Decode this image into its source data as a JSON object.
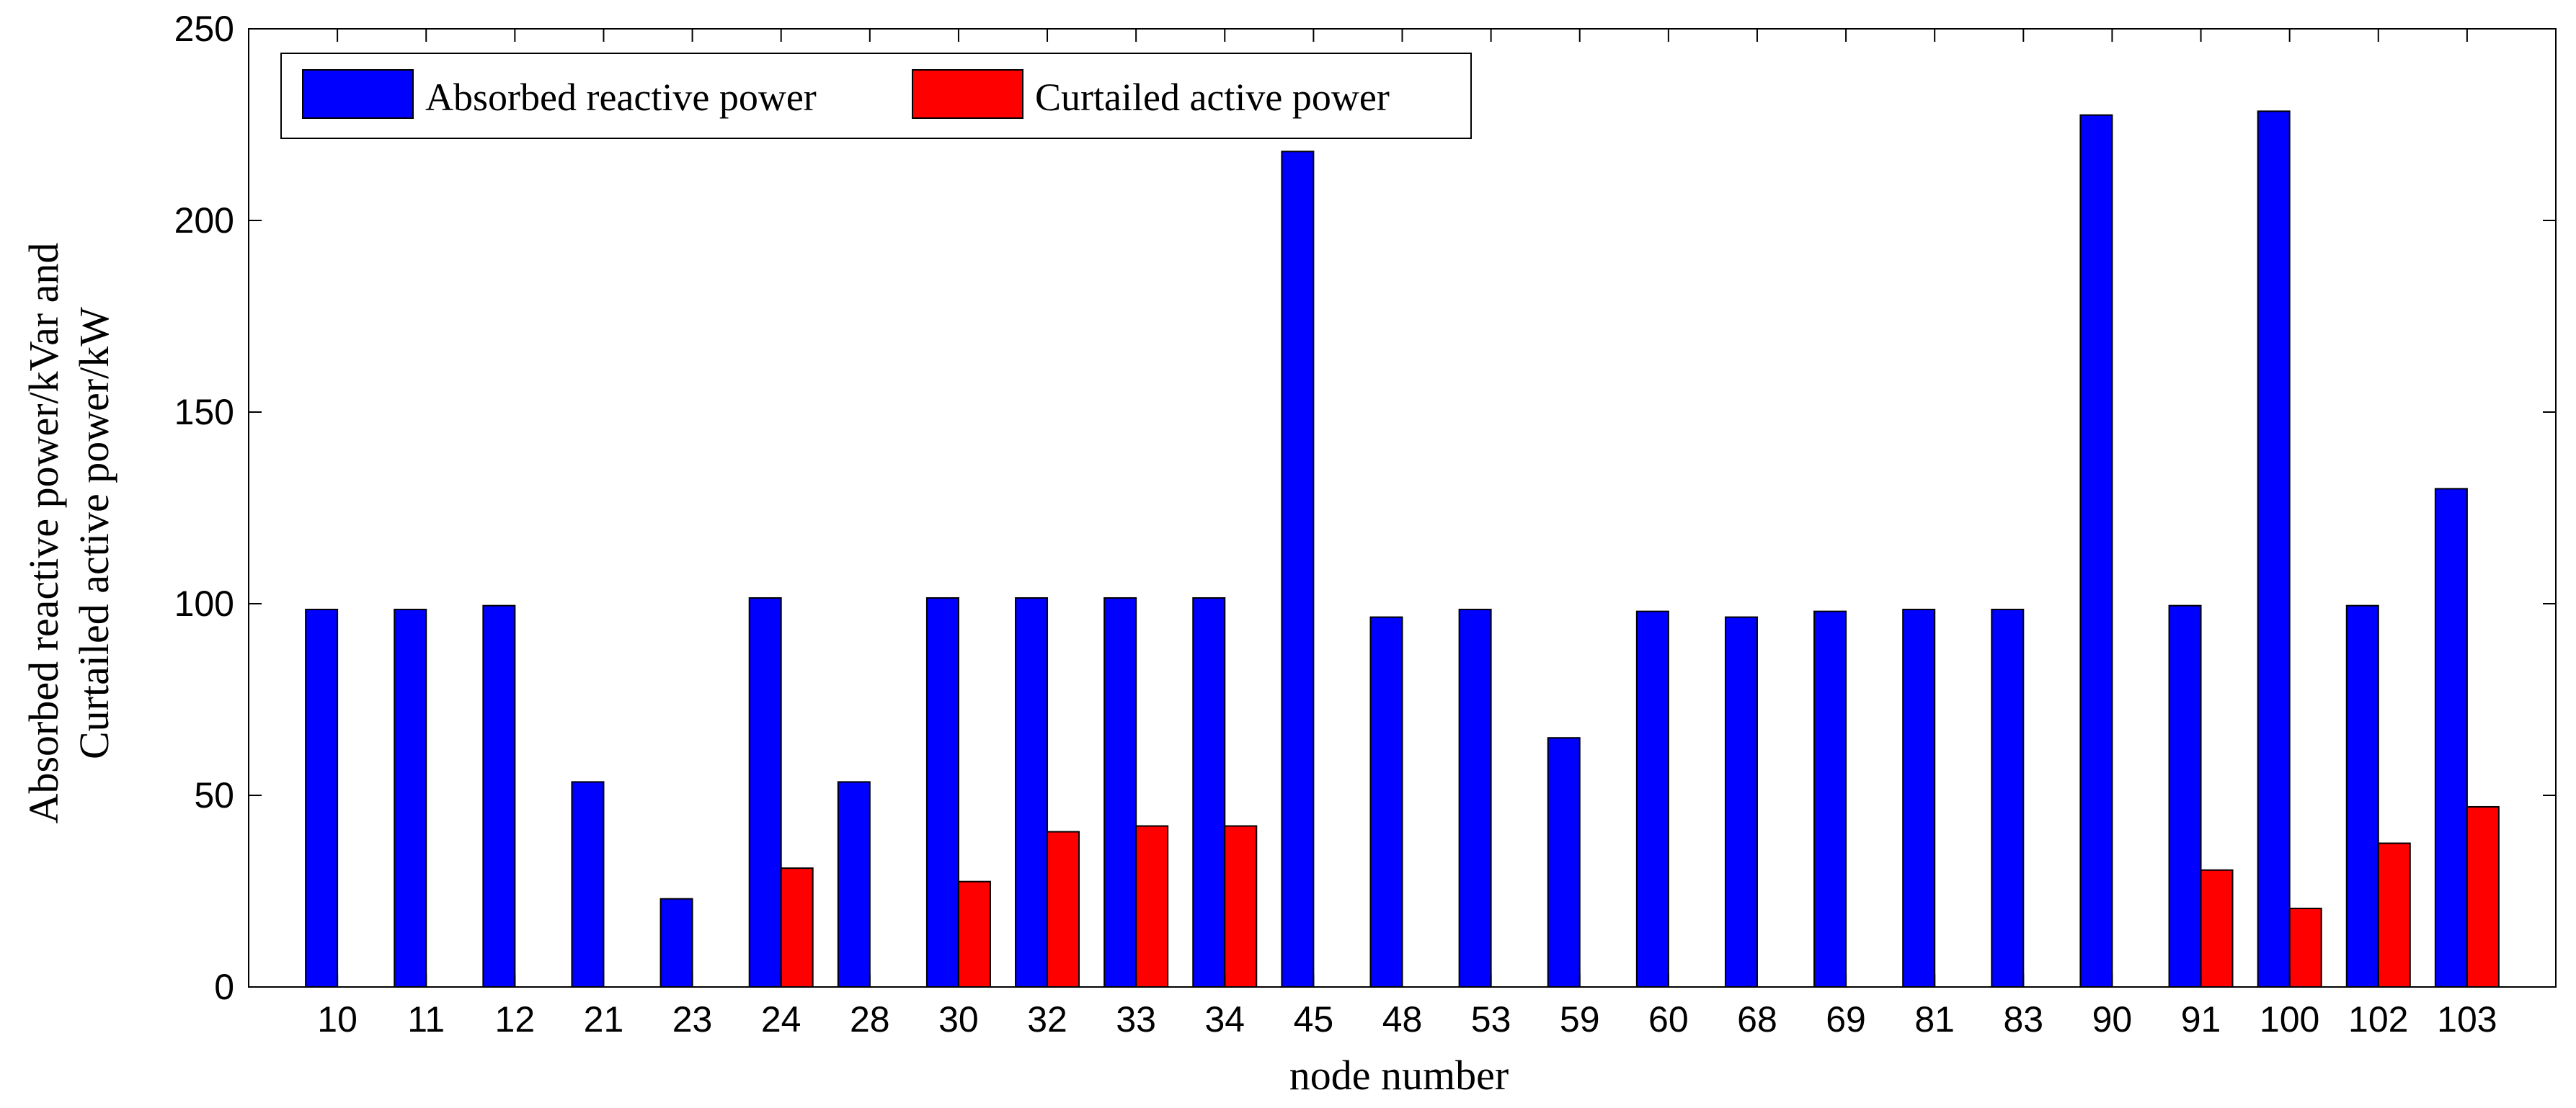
{
  "chart_data": {
    "type": "bar",
    "xlabel": "node number",
    "ylabel_lines": [
      "Absorbed reactive power/kVar and",
      "Curtailed active power/kW"
    ],
    "ylim": [
      0,
      250
    ],
    "yticks": [
      0,
      50,
      100,
      150,
      200,
      250
    ],
    "categories": [
      "10",
      "11",
      "12",
      "21",
      "23",
      "24",
      "28",
      "30",
      "32",
      "33",
      "34",
      "45",
      "48",
      "53",
      "59",
      "60",
      "68",
      "69",
      "81",
      "83",
      "90",
      "91",
      "100",
      "102",
      "103"
    ],
    "series": [
      {
        "name": "Absorbed reactive power",
        "color": "#0000ff",
        "values": [
          98.5,
          98.5,
          99.5,
          53.5,
          23,
          101.5,
          53.5,
          101.5,
          101.5,
          101.5,
          101.5,
          218,
          96.5,
          98.5,
          65,
          98,
          96.5,
          98,
          98.5,
          98.5,
          227.5,
          99.5,
          228.5,
          99.5,
          130
        ]
      },
      {
        "name": "Curtailed active power",
        "color": "#ff0000",
        "values": [
          0,
          0,
          0,
          0,
          0,
          31,
          0,
          27.5,
          40.5,
          42,
          42,
          0,
          0,
          0,
          0,
          0,
          0,
          0,
          0,
          0,
          0,
          30.5,
          20.5,
          37.5,
          47
        ]
      }
    ],
    "legend_position": "top-left",
    "grid": false
  }
}
